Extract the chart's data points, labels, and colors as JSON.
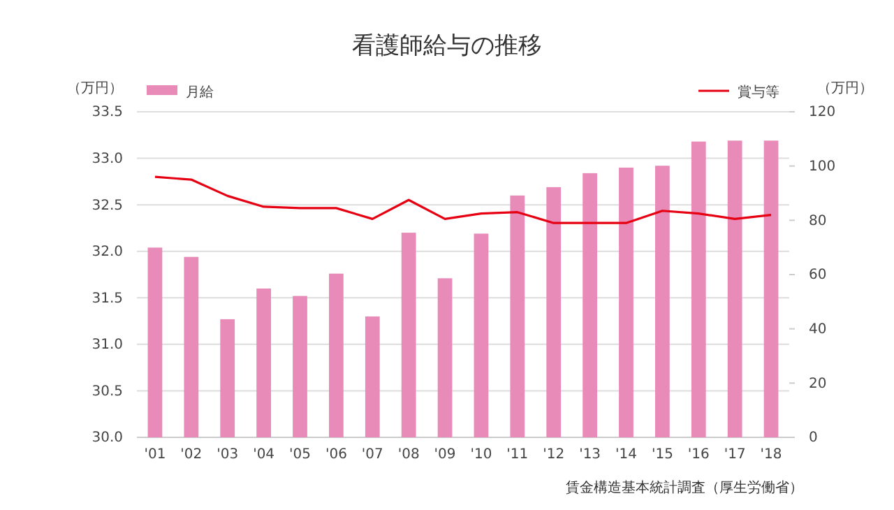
{
  "chart_data": {
    "type": "bar",
    "title": "看護師給与の推移",
    "ylabel": "（万円）",
    "y2label": "（万円）",
    "categories": [
      "'01",
      "'02",
      "'03",
      "'04",
      "'05",
      "'06",
      "'07",
      "'08",
      "'09",
      "'10",
      "'11",
      "'12",
      "'13",
      "'14",
      "'15",
      "'16",
      "'17",
      "'18"
    ],
    "series": [
      {
        "name": "月給",
        "color": "#e88bb8",
        "values": [
          32.04,
          31.94,
          31.27,
          31.6,
          31.52,
          31.76,
          31.3,
          32.2,
          31.71,
          32.19,
          32.6,
          32.69,
          32.84,
          32.9,
          32.92,
          33.18,
          33.19,
          33.19
        ]
      },
      {
        "name": "賞与等",
        "type": "line",
        "axis": "y2",
        "color": "#e60012",
        "values": [
          96,
          95,
          89,
          85,
          84.5,
          84.5,
          80.5,
          87.5,
          80.5,
          82.5,
          83,
          79,
          79,
          79,
          83.5,
          82.5,
          80.5,
          82
        ]
      }
    ],
    "ylim": [
      30,
      33.5
    ],
    "yticks": [
      {
        "value": 30,
        "label": "30.0"
      },
      {
        "value": 30.5,
        "label": "30.5"
      },
      {
        "value": 31,
        "label": "31.0"
      },
      {
        "value": 31.5,
        "label": "31.5"
      },
      {
        "value": 32,
        "label": "32.0"
      },
      {
        "value": 32.5,
        "label": "32.5"
      },
      {
        "value": 33,
        "label": "33.0"
      },
      {
        "value": 33.5,
        "label": "33.5"
      }
    ],
    "y2lim": [
      0,
      120
    ],
    "y2ticks": [
      0,
      20,
      40,
      60,
      80,
      100,
      120
    ],
    "grid": "y",
    "legend": "top",
    "marker": "none",
    "annotations": [
      "賃金構造基本統計調査（厚生労働省）"
    ]
  }
}
